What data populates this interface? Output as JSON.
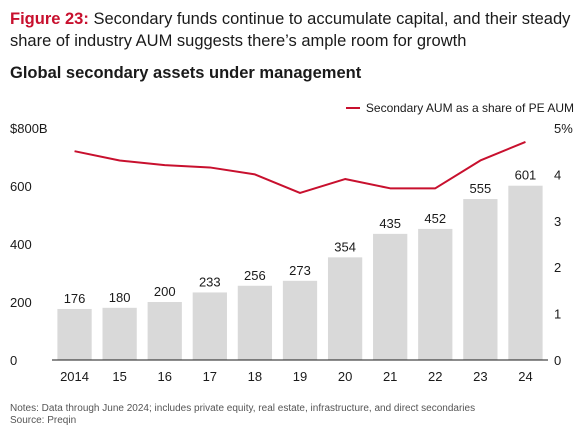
{
  "figure": {
    "label": "Figure 23:",
    "title": "Secondary funds continue to accumulate capital, and their steady share of industry AUM suggests there’s ample room for growth"
  },
  "chart_data": {
    "type": "bar",
    "title": "Global secondary assets under management",
    "categories": [
      "2014",
      "15",
      "16",
      "17",
      "18",
      "19",
      "20",
      "21",
      "22",
      "23",
      "24"
    ],
    "series": [
      {
        "type": "bar",
        "values": [
          176,
          180,
          200,
          233,
          256,
          273,
          354,
          435,
          452,
          555,
          601
        ],
        "color": "#d9d9d9",
        "axis": "left"
      },
      {
        "name": "Secondary AUM as a share of PE AUM",
        "type": "line",
        "values": [
          4.5,
          4.3,
          4.2,
          4.15,
          4.0,
          3.6,
          3.9,
          3.7,
          3.7,
          4.3,
          4.7
        ],
        "color": "#c8102e",
        "axis": "right"
      }
    ],
    "y_left": {
      "range": [
        0,
        800
      ],
      "ticks": [
        0,
        200,
        400,
        600,
        800
      ],
      "tick_labels": [
        "0",
        "200",
        "400",
        "600",
        "$800B"
      ]
    },
    "y_right": {
      "range": [
        0,
        5
      ],
      "ticks": [
        0,
        1,
        2,
        3,
        4,
        5
      ],
      "tick_labels": [
        "0",
        "1",
        "2",
        "3",
        "4",
        "5%"
      ]
    },
    "grid": false,
    "legend_position": "top-right"
  },
  "notes": {
    "line1": "Notes: Data through June 2024; includes private equity, real estate, infrastructure, and direct secondaries",
    "line2": "Source: Preqin"
  }
}
